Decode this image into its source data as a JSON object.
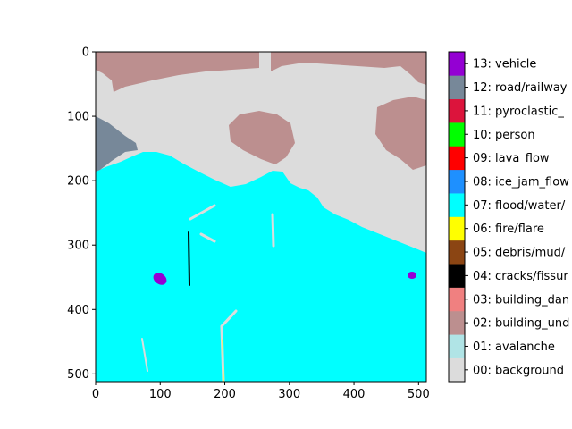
{
  "chart_data": {
    "type": "heatmap",
    "title": "",
    "xlabel": "",
    "ylabel": "",
    "xlim": [
      0,
      512
    ],
    "ylim": [
      512,
      0
    ],
    "xticks": [
      0,
      100,
      200,
      300,
      400,
      500
    ],
    "yticks": [
      0,
      100,
      200,
      300,
      400,
      500
    ],
    "grid": false,
    "colorbar_position": "right",
    "classes": [
      {
        "id": "00",
        "label": "00: background",
        "color": "#dcdcdc"
      },
      {
        "id": "01",
        "label": "01: avalanche",
        "color": "#b0e4e6"
      },
      {
        "id": "02",
        "label": "02: building_und",
        "color": "#bc8f8f"
      },
      {
        "id": "03",
        "label": "03: building_dan",
        "color": "#f08080"
      },
      {
        "id": "04",
        "label": "04: cracks/fissur",
        "color": "#000000"
      },
      {
        "id": "05",
        "label": "05: debris/mud/",
        "color": "#8b4513"
      },
      {
        "id": "06",
        "label": "06: fire/flare",
        "color": "#ffff00"
      },
      {
        "id": "07",
        "label": "07: flood/water/",
        "color": "#00ffff"
      },
      {
        "id": "08",
        "label": "08: ice_jam_flow",
        "color": "#1e90ff"
      },
      {
        "id": "09",
        "label": "09: lava_flow",
        "color": "#ff0000"
      },
      {
        "id": "10",
        "label": "10: person",
        "color": "#00ff00"
      },
      {
        "id": "11",
        "label": "11: pyroclastic_",
        "color": "#dc143c"
      },
      {
        "id": "12",
        "label": "12: road/railway",
        "color": "#778899"
      },
      {
        "id": "13",
        "label": "13: vehicle",
        "color": "#9400d3"
      }
    ],
    "present_classes": [
      "00",
      "02",
      "04",
      "06",
      "07",
      "12",
      "13"
    ]
  }
}
